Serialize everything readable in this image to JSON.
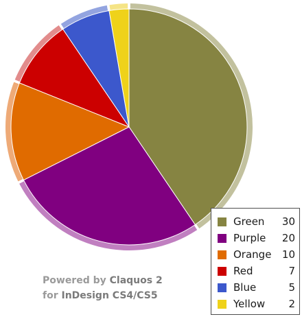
{
  "chart_data": {
    "type": "pie",
    "title": "",
    "categories": [
      "Green",
      "Purple",
      "Orange",
      "Red",
      "Blue",
      "Yellow"
    ],
    "values": [
      30,
      20,
      10,
      7,
      5,
      2
    ],
    "colors": [
      "#868442",
      "#800080",
      "#e06b00",
      "#cc0000",
      "#3c58cc",
      "#efd21a"
    ],
    "rim_colors": [
      "#c2c19e",
      "#c07fc0",
      "#eeaa77",
      "#e28c8c",
      "#93a4e0",
      "#f5e486"
    ],
    "start_angle_deg": 0,
    "direction": "clockwise",
    "exploded": false,
    "legend_position": "bottom-right"
  },
  "credit": {
    "line1_prefix": "Powered by",
    "line1_product": "Claquos 2",
    "line2_prefix": "for",
    "line2_product": "InDesign CS4/CS5"
  }
}
